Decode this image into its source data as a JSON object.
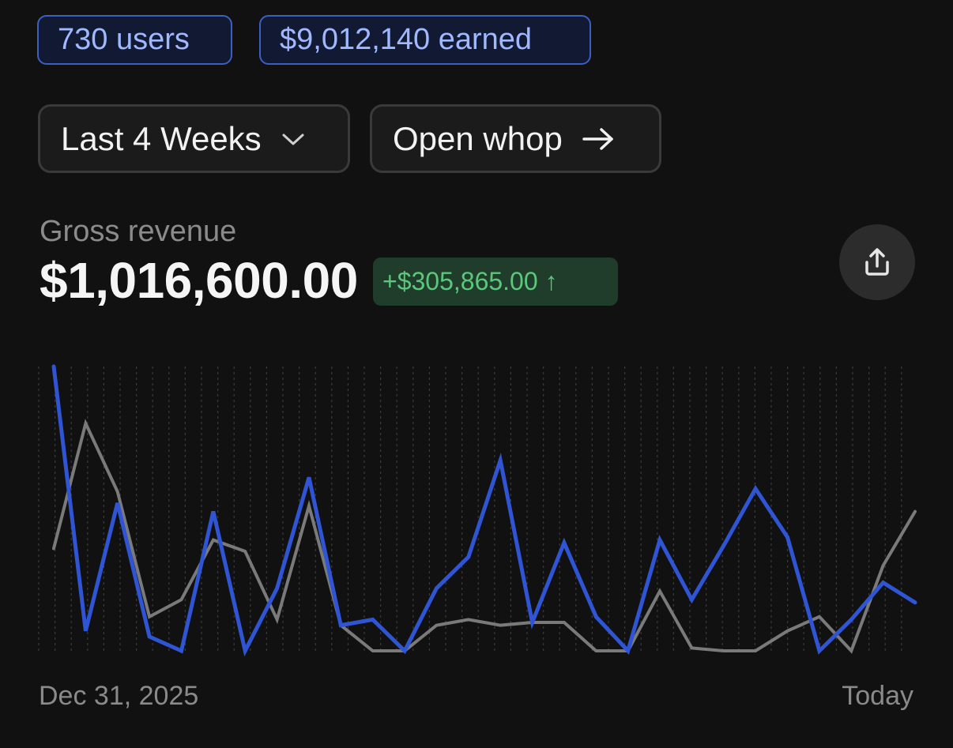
{
  "stats": {
    "users_label": "730 users",
    "earned_label": "$9,012,140 earned"
  },
  "controls": {
    "range_label": "Last 4 Weeks",
    "range_icon": "chevron-down-icon",
    "open_label": "Open whop",
    "open_icon": "arrow-right-icon"
  },
  "metric": {
    "label": "Gross revenue",
    "value": "$1,016,600.00",
    "delta": "+$305,865.00 ↑",
    "share_icon": "share-icon"
  },
  "colors": {
    "current_series": "#2f55d4",
    "previous_series": "#7a7a7a",
    "positive": "#5cc77c",
    "accent_border": "#3d5fc4"
  },
  "chart_data": {
    "type": "line",
    "x_start_label": "Dec 31, 2025",
    "x_end_label": "Today",
    "grid": "vertical-dotted",
    "ylim": [
      0,
      100
    ],
    "series": [
      {
        "values": [
          100,
          7,
          52,
          5,
          0,
          49,
          0,
          22,
          61,
          9,
          11,
          0,
          22,
          33,
          67,
          10,
          38,
          12,
          0,
          39,
          18,
          37,
          57,
          40,
          0,
          11,
          24,
          17
        ]
      },
      {
        "values": [
          36,
          80,
          56,
          12,
          18,
          39,
          35,
          11,
          51,
          9,
          0,
          0,
          9,
          11,
          9,
          10,
          10,
          0,
          0,
          21,
          1,
          0,
          0,
          7,
          12,
          0,
          30,
          49
        ]
      }
    ]
  }
}
